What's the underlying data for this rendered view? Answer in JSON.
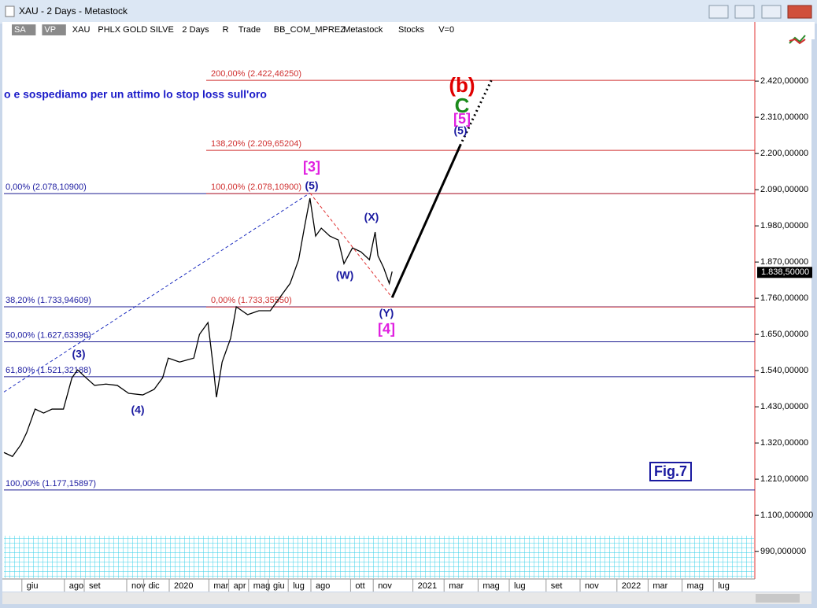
{
  "window": {
    "title": "XAU - 2 Days - Metastock"
  },
  "toolbar": {
    "items": [
      "SA",
      "VP",
      "XAU",
      "PHLX GOLD SILVE",
      "2 Days",
      "R",
      "Trade",
      "BB_COM_MPREZ",
      "Metastock",
      "Stocks",
      "V=0"
    ]
  },
  "chart_data": {
    "type": "line",
    "annotation_text": "o e sospediamo per un attimo lo stop loss sull'oro",
    "fig_label": "Fig.7",
    "x": [
      0,
      3,
      6,
      8,
      11,
      14,
      17,
      21,
      24,
      26,
      29,
      32,
      36,
      40,
      44,
      49,
      53,
      56,
      58,
      62,
      67,
      69,
      72,
      74,
      75,
      77,
      80,
      82,
      86,
      90,
      94,
      97,
      101,
      104,
      106,
      108,
      110,
      112,
      115,
      118,
      120,
      123,
      126,
      129,
      131,
      132,
      134,
      136,
      137
    ],
    "series": [
      {
        "color": "#000000",
        "values": [
          1291,
          1279,
          1315,
          1351,
          1423,
          1411,
          1423,
          1423,
          1518,
          1542,
          1518,
          1495,
          1499,
          1495,
          1471,
          1466,
          1483,
          1518,
          1578,
          1566,
          1578,
          1650,
          1686,
          1542,
          1459,
          1566,
          1638,
          1734,
          1710,
          1722,
          1722,
          1758,
          1805,
          1877,
          1973,
          2064,
          1949,
          1973,
          1949,
          1937,
          1865,
          1913,
          1901,
          1877,
          1961,
          1889,
          1853,
          1805,
          1841
        ]
      }
    ],
    "xlim": [
      0,
      265
    ],
    "xticks": [
      {
        "value": 8,
        "label": "giu"
      },
      {
        "value": 23,
        "label": "ago"
      },
      {
        "value": 30,
        "label": "set"
      },
      {
        "value": 45,
        "label": "nov"
      },
      {
        "value": 51,
        "label": "dic"
      },
      {
        "value": 60,
        "label": "2020"
      },
      {
        "value": 74,
        "label": "mar"
      },
      {
        "value": 81,
        "label": "apr"
      },
      {
        "value": 88,
        "label": "mag"
      },
      {
        "value": 95,
        "label": "giu"
      },
      {
        "value": 102,
        "label": "lug"
      },
      {
        "value": 110,
        "label": "ago"
      },
      {
        "value": 124,
        "label": "ott"
      },
      {
        "value": 132,
        "label": "nov"
      },
      {
        "value": 146,
        "label": "2021"
      },
      {
        "value": 157,
        "label": "mar"
      },
      {
        "value": 169,
        "label": "mag"
      },
      {
        "value": 180,
        "label": "lug"
      },
      {
        "value": 193,
        "label": "set"
      },
      {
        "value": 205,
        "label": "nov"
      },
      {
        "value": 218,
        "label": "2022"
      },
      {
        "value": 229,
        "label": "mar"
      },
      {
        "value": 241,
        "label": "mag"
      },
      {
        "value": 252,
        "label": "lug"
      }
    ],
    "ylim": [
      909,
      2547
    ],
    "yticks": [
      {
        "value": 990,
        "label": "990,000000"
      },
      {
        "value": 1100,
        "label": "1.100,000000"
      },
      {
        "value": 1210,
        "label": "1.210,00000"
      },
      {
        "value": 1320,
        "label": "1.320,00000"
      },
      {
        "value": 1430,
        "label": "1.430,00000"
      },
      {
        "value": 1540,
        "label": "1.540,00000"
      },
      {
        "value": 1650,
        "label": "1.650,00000"
      },
      {
        "value": 1760,
        "label": "1.760,00000"
      },
      {
        "value": 1870,
        "label": "1.870,00000"
      },
      {
        "value": 1980,
        "label": "1.980,00000"
      },
      {
        "value": 2090,
        "label": "2.090,00000"
      },
      {
        "value": 2200,
        "label": "2.200,00000"
      },
      {
        "value": 2310,
        "label": "2.310,00000"
      },
      {
        "value": 2420,
        "label": "2.420,00000"
      }
    ],
    "last_price": {
      "value": 1838.5,
      "label": "1.838,50000"
    },
    "fib_blue": [
      {
        "value": 2078.109,
        "label": "0,00% (2.078,10900)"
      },
      {
        "value": 1733.94609,
        "label": "38,20% (1.733,94609)"
      },
      {
        "value": 1627.63396,
        "label": "50,00% (1.627,63396)"
      },
      {
        "value": 1521.32188,
        "label": "61,80% (1.521,32188)"
      },
      {
        "value": 1177.15897,
        "label": "100,00% (1.177,15897)"
      }
    ],
    "fib_red": [
      {
        "value": 2422.4625,
        "label": "200,00% (2.422,46250)"
      },
      {
        "value": 2209.65204,
        "label": "138,20% (2.209,65204)"
      },
      {
        "value": 2078.109,
        "label": "100,00% (2.078,10900)"
      },
      {
        "value": 1733.3555,
        "label": "0,00% (1.733,35550)"
      }
    ],
    "trend_lines": [
      {
        "x": [
          0,
          108
        ],
        "values": [
          1475,
          2080
        ],
        "color": "#2030c0",
        "style": "dashed",
        "width": 1
      },
      {
        "x": [
          108,
          137
        ],
        "values": [
          2080,
          1762
        ],
        "color": "#e03030",
        "style": "dashed",
        "width": 1
      },
      {
        "x": [
          137,
          161
        ],
        "values": [
          1762,
          2224
        ],
        "color": "#000000",
        "style": "solid",
        "width": 3
      },
      {
        "x": [
          161,
          172
        ],
        "values": [
          2224,
          2422
        ],
        "color": "#000000",
        "style": "dotted",
        "width": 3
      }
    ],
    "wave_labels": [
      {
        "text": "(b)",
        "color": "#e00000"
      },
      {
        "text": "C",
        "color": "#1a8a1a"
      },
      {
        "text": "[5]",
        "color": "#e020e0"
      },
      {
        "text": "(5)",
        "color": "#1a1aa0"
      },
      {
        "text": "[3]",
        "color": "#e020e0"
      },
      {
        "text": "(5)",
        "color": "#1a1aa0"
      },
      {
        "text": "(X)",
        "color": "#1a1aa0"
      },
      {
        "text": "(W)",
        "color": "#1a1aa0"
      },
      {
        "text": "(Y)",
        "color": "#1a1aa0"
      },
      {
        "text": "[4]",
        "color": "#e020e0"
      },
      {
        "text": "(3)",
        "color": "#1a1aa0"
      },
      {
        "text": "(4)",
        "color": "#1a1aa0"
      }
    ]
  }
}
